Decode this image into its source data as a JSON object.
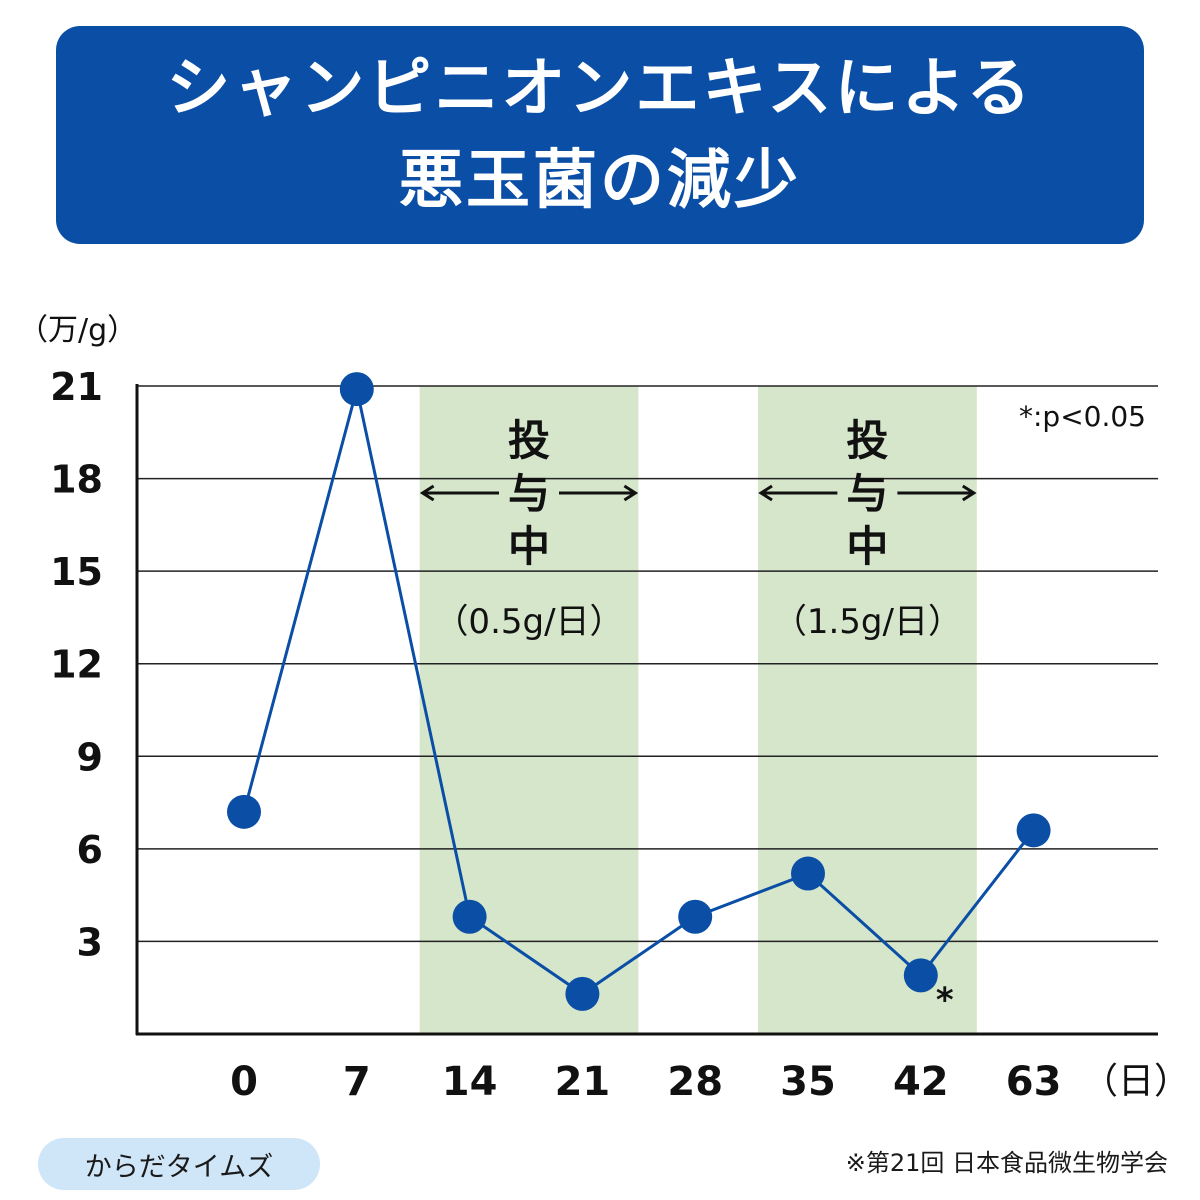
{
  "title": {
    "line1": "シャンピニオンエキスによる",
    "line2": "悪玉菌の減少"
  },
  "chart_data": {
    "type": "line",
    "y_unit": "（万/g）",
    "x_unit": "（日）",
    "x": [
      "0",
      "7",
      "14",
      "21",
      "28",
      "35",
      "42",
      "63"
    ],
    "series": [
      {
        "values": [
          7.2,
          20.9,
          3.8,
          1.3,
          3.8,
          5.2,
          1.9,
          6.6
        ]
      }
    ],
    "y_ticks": [
      3,
      6,
      9,
      12,
      15,
      18,
      21
    ],
    "ylim": [
      0,
      21
    ],
    "grid": "horizontal",
    "color": "#0a4ea6",
    "dosing_periods": [
      {
        "from": "14",
        "to": "21",
        "label_lines": [
          "投",
          "与",
          "中"
        ],
        "dose": "（0.5g/日）"
      },
      {
        "from": "35",
        "to": "42",
        "label_lines": [
          "投",
          "与",
          "中"
        ],
        "dose": "（1.5g/日）"
      }
    ],
    "shade_color": "#d6e6cb",
    "significance_marker": {
      "x": "42",
      "symbol": "*"
    },
    "significance_note": "*:p<0.05"
  },
  "source_badge": "からだタイムズ",
  "citation": "※第21回 日本食品微生物学会"
}
